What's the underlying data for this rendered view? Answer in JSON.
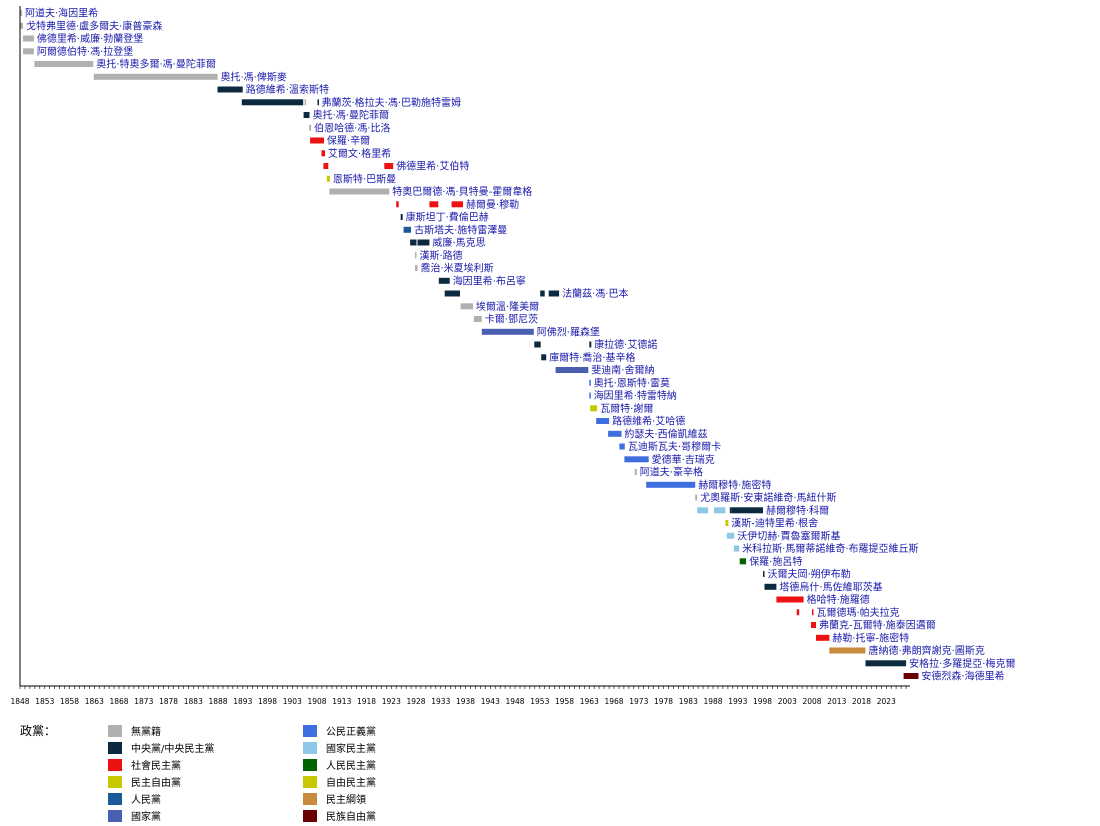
{
  "chart_data": {
    "type": "timeline",
    "x_range": [
      1848,
      2027
    ],
    "x_ticks": [
      1848,
      1853,
      1858,
      1863,
      1868,
      1873,
      1878,
      1883,
      1888,
      1893,
      1898,
      1903,
      1908,
      1913,
      1918,
      1923,
      1928,
      1933,
      1938,
      1943,
      1948,
      1953,
      1958,
      1963,
      1968,
      1973,
      1978,
      1983,
      1988,
      1993,
      1998,
      2003,
      2008,
      2013,
      2018,
      2023
    ],
    "rows": [
      {
        "name": "阿道夫·海因里希",
        "periods": [
          [
            1848.0,
            1848.4,
            "none"
          ]
        ]
      },
      {
        "name": "戈特弗里德·盧多爾夫·康普豪森",
        "periods": [
          [
            1848.0,
            1848.6,
            "none"
          ]
        ]
      },
      {
        "name": "佛德里希·威廉·勃蘭登堡",
        "periods": [
          [
            1848.6,
            1850.8,
            "none"
          ]
        ]
      },
      {
        "name": "阿爾德伯特·馮·拉登堡",
        "periods": [
          [
            1848.6,
            1850.8,
            "none"
          ]
        ]
      },
      {
        "name": "奧托·特奧多爾·馮·曼陀菲爾",
        "periods": [
          [
            1850.9,
            1862.8,
            "none"
          ]
        ]
      },
      {
        "name": "奧托·馮·俾斯麥",
        "periods": [
          [
            1862.9,
            1887.9,
            "none"
          ]
        ]
      },
      {
        "name": "路德維希·溫索斯特",
        "periods": [
          [
            1887.9,
            1893.0,
            "zentrum"
          ]
        ]
      },
      {
        "name": "弗蘭茨·格拉夫·馮·巴勒施特雷姆",
        "periods": [
          [
            1892.8,
            1905.2,
            "zentrum"
          ],
          [
            1905.5,
            1905.8,
            "none"
          ],
          [
            1908.1,
            1908.3,
            "zentrum"
          ]
        ]
      },
      {
        "name": "奧托·馮·曼陀菲爾",
        "periods": [
          [
            1905.3,
            1906.5,
            "zentrum"
          ]
        ]
      },
      {
        "name": "伯恩哈德·馮·比洛",
        "periods": [
          [
            1906.4,
            1906.8,
            "none"
          ]
        ]
      },
      {
        "name": "保羅·辛爾",
        "periods": [
          [
            1906.6,
            1909.4,
            "spd"
          ]
        ]
      },
      {
        "name": "艾爾文·格里希",
        "periods": [
          [
            1908.9,
            1909.6,
            "spd"
          ]
        ]
      },
      {
        "name": "佛德里希·艾伯特",
        "periods": [
          [
            1909.3,
            1910.3,
            "spd"
          ],
          [
            1921.6,
            1923.4,
            "spd"
          ]
        ]
      },
      {
        "name": "恩斯特·巴斯曼",
        "periods": [
          [
            1910.0,
            1910.6,
            "ldp"
          ]
        ]
      },
      {
        "name": "特奧巴爾德·馮·貝特曼-霍爾韋格",
        "periods": [
          [
            1910.5,
            1922.6,
            "none"
          ]
        ]
      },
      {
        "name": "赫爾曼·穆勒",
        "periods": [
          [
            1924.0,
            1924.5,
            "spd"
          ],
          [
            1930.7,
            1932.5,
            "spd"
          ],
          [
            1935.2,
            1937.5,
            "spd"
          ]
        ]
      },
      {
        "name": "康斯坦丁·費倫巴赫",
        "periods": [
          [
            1924.9,
            1925.3,
            "zentrum"
          ]
        ]
      },
      {
        "name": "古斯塔夫·施特雷澤曼",
        "periods": [
          [
            1925.5,
            1927.0,
            "vp"
          ]
        ]
      },
      {
        "name": "威廉·馬克思",
        "periods": [
          [
            1926.8,
            1928.1,
            "zentrum"
          ],
          [
            1928.3,
            1930.7,
            "zentrum"
          ]
        ]
      },
      {
        "name": "漢斯·路德",
        "periods": [
          [
            1927.8,
            1928.1,
            "none"
          ]
        ]
      },
      {
        "name": "喬治·米夏埃利斯",
        "periods": [
          [
            1927.8,
            1928.3,
            "none"
          ]
        ]
      },
      {
        "name": "海因里希·布呂寧",
        "periods": [
          [
            1932.6,
            1934.8,
            "zentrum"
          ]
        ]
      },
      {
        "name": "法蘭茲·馮·巴本",
        "periods": [
          [
            1933.8,
            1936.9,
            "zentrum"
          ],
          [
            1953.1,
            1954.0,
            "zentrum"
          ],
          [
            1954.8,
            1956.9,
            "zentrum"
          ]
        ]
      },
      {
        "name": "埃爾溫·隆美爾",
        "periods": [
          [
            1937.0,
            1939.5,
            "none"
          ]
        ]
      },
      {
        "name": "卡爾·鄧尼茨",
        "periods": [
          [
            1939.7,
            1941.3,
            "none"
          ]
        ]
      },
      {
        "name": "阿佛烈·羅森堡",
        "periods": [
          [
            1941.3,
            1951.8,
            "nat"
          ]
        ]
      },
      {
        "name": "康拉德·艾德諾",
        "periods": [
          [
            1951.9,
            1953.2,
            "zentrum"
          ],
          [
            1963.0,
            1963.4,
            "zentrum"
          ]
        ]
      },
      {
        "name": "庫爾特·喬治·基辛格",
        "periods": [
          [
            1953.3,
            1954.3,
            "zentrum"
          ]
        ]
      },
      {
        "name": "斐迪南·舍爾納",
        "periods": [
          [
            1956.2,
            1962.8,
            "nat"
          ]
        ]
      },
      {
        "name": "奧托·恩斯特·雷莫",
        "periods": [
          [
            1963.0,
            1963.3,
            "cdu"
          ]
        ]
      },
      {
        "name": "海因里希·特雷特納",
        "periods": [
          [
            1963.0,
            1963.3,
            "cdu"
          ]
        ]
      },
      {
        "name": "瓦爾特·謝爾",
        "periods": [
          [
            1963.2,
            1964.6,
            "fdp"
          ]
        ]
      },
      {
        "name": "路德維希·艾哈德",
        "periods": [
          [
            1964.4,
            1967.0,
            "cdu"
          ]
        ]
      },
      {
        "name": "約瑟夫·西倫凱維茲",
        "periods": [
          [
            1966.8,
            1969.5,
            "cdu"
          ]
        ]
      },
      {
        "name": "瓦迪斯瓦夫·哥穆爾卡",
        "periods": [
          [
            1969.1,
            1970.2,
            "cdu"
          ]
        ]
      },
      {
        "name": "愛德華·吉瑞克",
        "periods": [
          [
            1970.1,
            1975.0,
            "cdu"
          ]
        ]
      },
      {
        "name": "阿道夫·豪辛格",
        "periods": [
          [
            1972.2,
            1972.6,
            "none"
          ]
        ]
      },
      {
        "name": "赫爾穆特·施密特",
        "periods": [
          [
            1974.5,
            1984.4,
            "cdu"
          ]
        ]
      },
      {
        "name": "尤奧羅斯·安東諾維奇·馬紐什斯",
        "periods": [
          [
            1984.4,
            1984.8,
            "none"
          ]
        ]
      },
      {
        "name": "赫爾穆特·科爾",
        "periods": [
          [
            1984.8,
            1987.0,
            "nvp"
          ],
          [
            1988.2,
            1990.5,
            "nvp"
          ],
          [
            1991.4,
            1991.8,
            "zentrum"
          ],
          [
            1991.8,
            1998.1,
            "zentrum"
          ]
        ]
      },
      {
        "name": "漢斯-迪特里希·根舍",
        "periods": [
          [
            1990.5,
            1991.1,
            "fdp"
          ]
        ]
      },
      {
        "name": "沃伊切赫·賈魯塞爾斯基",
        "periods": [
          [
            1990.8,
            1992.3,
            "nvp"
          ]
        ]
      },
      {
        "name": "米科拉斯·馬爾蒂諾維奇·布羅提亞維丘斯",
        "periods": [
          [
            1992.2,
            1993.3,
            "nvp"
          ]
        ]
      },
      {
        "name": "保羅·施呂特",
        "periods": [
          [
            1993.4,
            1994.7,
            "pp"
          ]
        ]
      },
      {
        "name": "沃爾夫岡·朔伊布勒",
        "periods": [
          [
            1998.1,
            1998.4,
            "zentrum"
          ]
        ]
      },
      {
        "name": "塔德烏什·馬佐維耶茨基",
        "periods": [
          [
            1998.4,
            2000.8,
            "zentrum"
          ]
        ]
      },
      {
        "name": "格哈特·施羅德",
        "periods": [
          [
            2000.8,
            2006.3,
            "spd"
          ]
        ]
      },
      {
        "name": "瓦爾德瑪·帕夫拉克",
        "periods": [
          [
            2004.9,
            2005.4,
            "spd"
          ],
          [
            2008.0,
            2008.3,
            "spd"
          ]
        ]
      },
      {
        "name": "弗蘭克-瓦爾特·施泰因邁爾",
        "periods": [
          [
            2007.8,
            2008.8,
            "spd"
          ]
        ]
      },
      {
        "name": "赫勒·托寧-施密特",
        "periods": [
          [
            2008.8,
            2011.5,
            "spd"
          ]
        ]
      },
      {
        "name": "唐納德·弗朗齊謝克·圖斯克",
        "periods": [
          [
            2011.5,
            2018.8,
            "dk"
          ]
        ]
      },
      {
        "name": "安格拉·多羅提亞·梅克爾",
        "periods": [
          [
            2018.8,
            2027.0,
            "zentrum"
          ]
        ]
      },
      {
        "name": "安德烈森·海德里希",
        "periods": [
          [
            2026.5,
            2029.5,
            "fn"
          ]
        ]
      }
    ]
  },
  "legend": {
    "title": "政黨：",
    "items": [
      {
        "key": "none",
        "label": "無黨籍",
        "color": "#b0b0b0"
      },
      {
        "key": "zentrum",
        "label": "中央黨/中央民主黨",
        "color": "#0b2a40"
      },
      {
        "key": "spd",
        "label": "社會民主黨",
        "color": "#ee1111"
      },
      {
        "key": "ldp",
        "label": "民主自由黨",
        "color": "#c8c800"
      },
      {
        "key": "vp",
        "label": "人民黨",
        "color": "#1a5a9a"
      },
      {
        "key": "nat",
        "label": "國家黨",
        "color": "#4a5fb0"
      },
      {
        "key": "cdu",
        "label": "公民正義黨",
        "color": "#3e6ee0"
      },
      {
        "key": "nvp",
        "label": "國家民主黨",
        "color": "#8ec8e6"
      },
      {
        "key": "pp",
        "label": "人民民主黨",
        "color": "#006400"
      },
      {
        "key": "fdp",
        "label": "自由民主黨",
        "color": "#c8c800"
      },
      {
        "key": "dk",
        "label": "民主綱領",
        "color": "#c88a3c"
      },
      {
        "key": "fn",
        "label": "民族自由黨",
        "color": "#6a0000"
      }
    ]
  }
}
